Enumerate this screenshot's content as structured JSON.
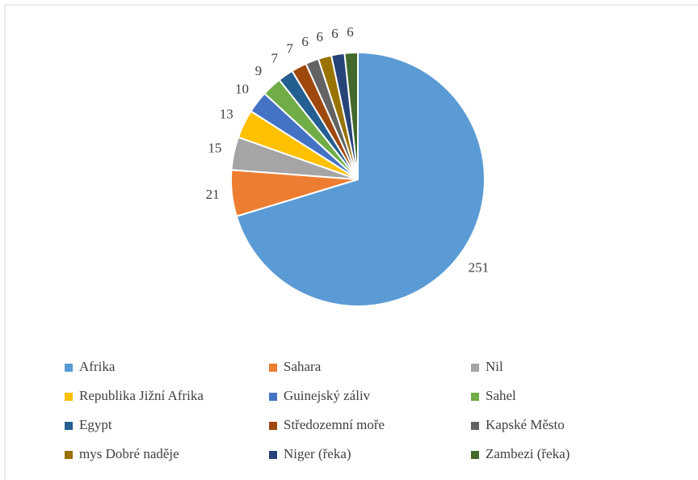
{
  "chart_data": {
    "type": "pie",
    "categories": [
      "Afrika",
      "Sahara",
      "Nil",
      "Republika Jižní Afrika",
      "Guinejský záliv",
      "Sahel",
      "Egypt",
      "Středozemní moře",
      "Kapské Město",
      "mys Dobré naděje",
      "Niger (řeka)",
      "Zambezi (řeka)"
    ],
    "values": [
      251,
      21,
      15,
      13,
      10,
      9,
      7,
      7,
      6,
      6,
      6,
      6
    ],
    "colors": [
      "#5b9bd5",
      "#ed7d31",
      "#a5a5a5",
      "#ffc000",
      "#4472c4",
      "#70ad47",
      "#255e91",
      "#9e480e",
      "#636363",
      "#997300",
      "#264478",
      "#43682b"
    ],
    "legend": "bottom"
  }
}
